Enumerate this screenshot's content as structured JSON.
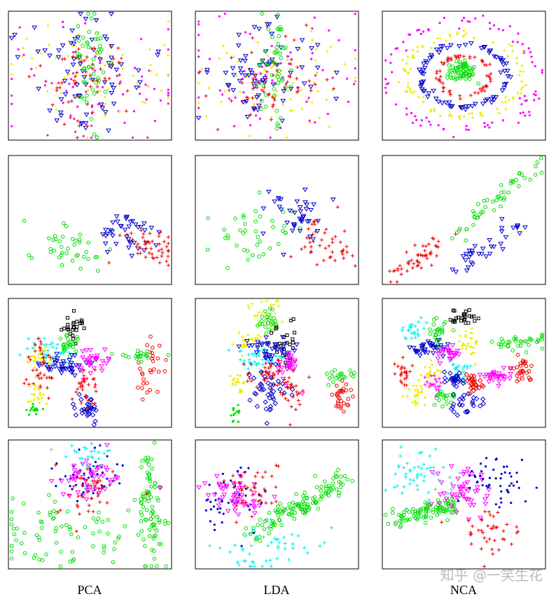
{
  "columns": [
    "PCA",
    "LDA",
    "NCA"
  ],
  "watermark": "知乎 @一笑生花"
}
